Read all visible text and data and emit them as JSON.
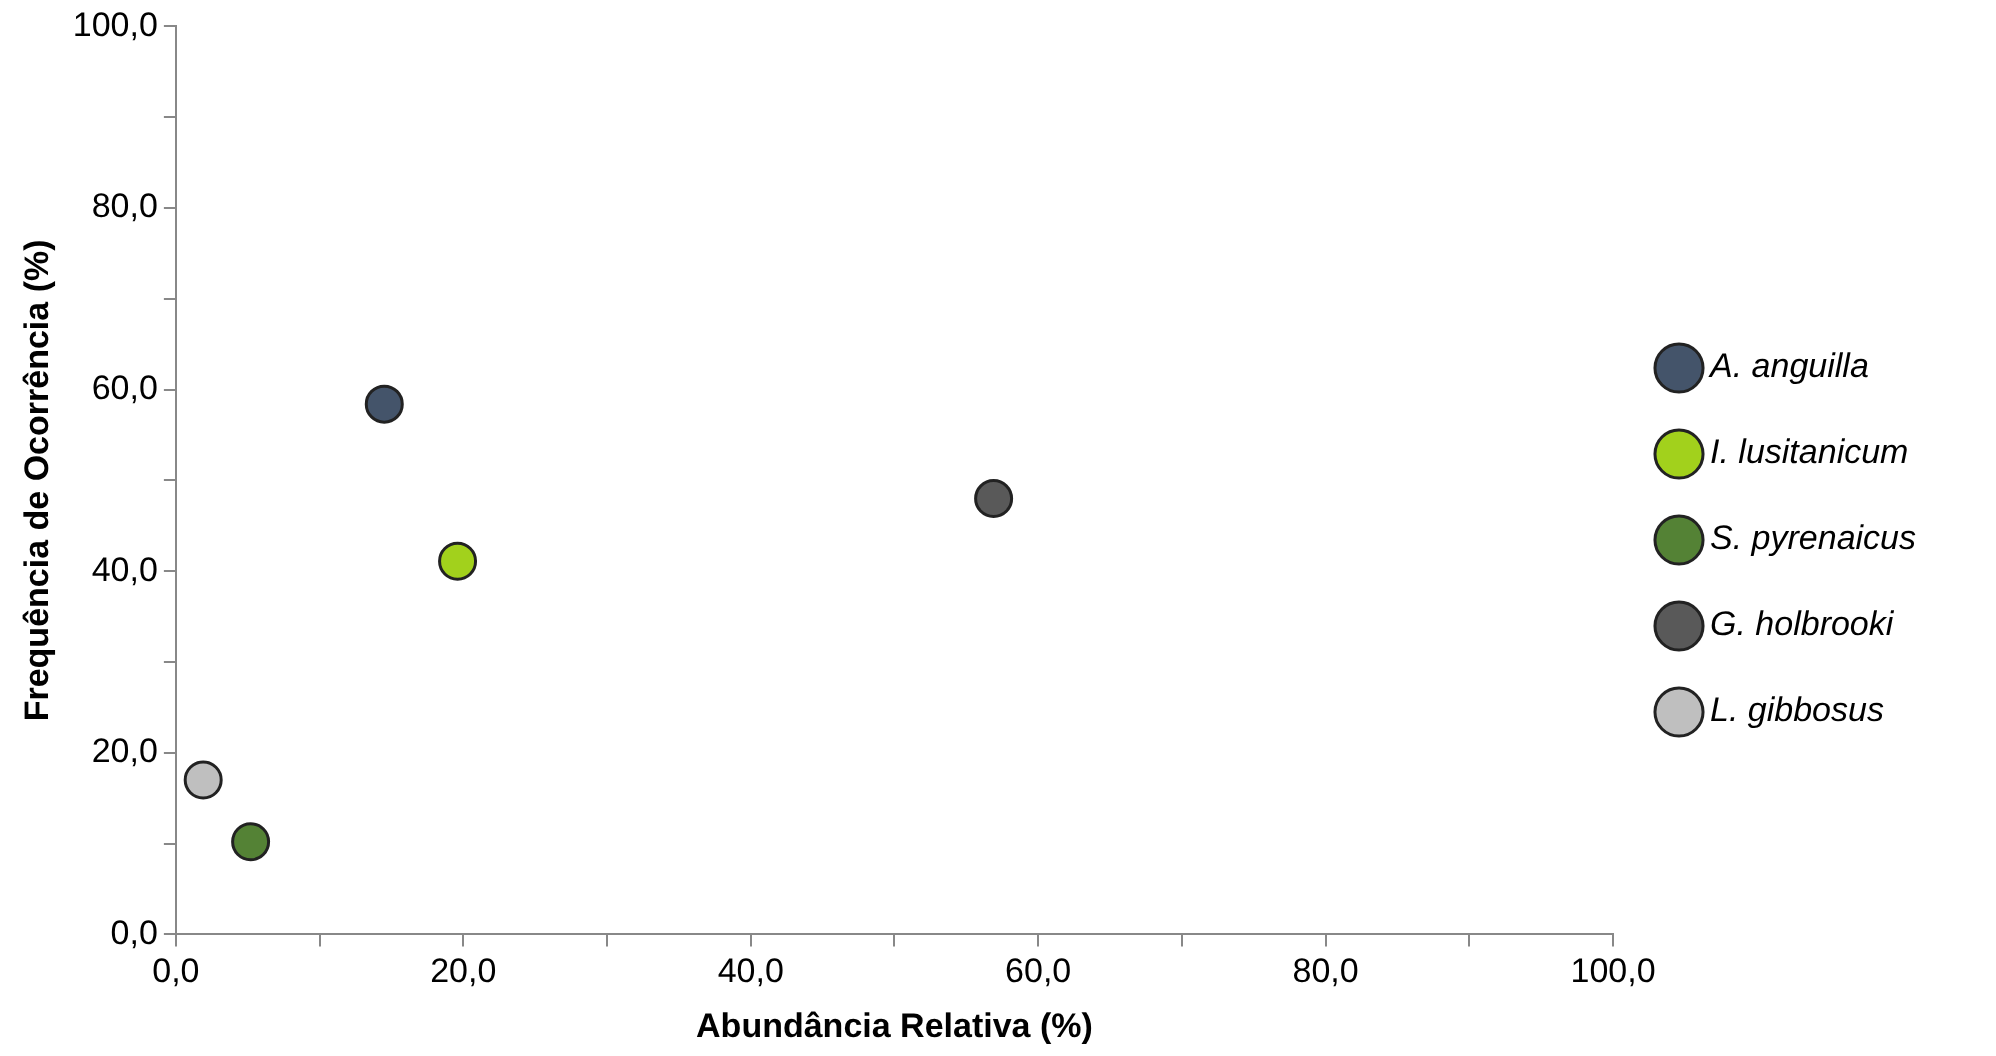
{
  "chart_data": {
    "type": "scatter",
    "xlabel": "Abundância Relativa (%)",
    "ylabel": "Frequência de Ocorrência (%)",
    "xlim": [
      0,
      100
    ],
    "ylim": [
      0,
      100
    ],
    "xticks": [
      {
        "value": 0,
        "label": "0,0"
      },
      {
        "value": 10,
        "label": null
      },
      {
        "value": 20,
        "label": "20,0"
      },
      {
        "value": 30,
        "label": null
      },
      {
        "value": 40,
        "label": "40,0"
      },
      {
        "value": 50,
        "label": null
      },
      {
        "value": 60,
        "label": "60,0"
      },
      {
        "value": 70,
        "label": null
      },
      {
        "value": 80,
        "label": "80,0"
      },
      {
        "value": 90,
        "label": null
      },
      {
        "value": 100,
        "label": "100,0"
      }
    ],
    "yticks": [
      {
        "value": 0,
        "label": "0,0"
      },
      {
        "value": 10,
        "label": null
      },
      {
        "value": 20,
        "label": "20,0"
      },
      {
        "value": 30,
        "label": null
      },
      {
        "value": 40,
        "label": "40,0"
      },
      {
        "value": 50,
        "label": null
      },
      {
        "value": 60,
        "label": "60,0"
      },
      {
        "value": 70,
        "label": null
      },
      {
        "value": 80,
        "label": "80,0"
      },
      {
        "value": 90,
        "label": null
      },
      {
        "value": 100,
        "label": "100,0"
      }
    ],
    "grid": false,
    "legend": "right",
    "marker": "circle",
    "series": [
      {
        "name": "A. anguilla",
        "color": "#44546a",
        "x": [
          14.5
        ],
        "values": [
          58.4
        ]
      },
      {
        "name": "I. lusitanicum",
        "color": "#a2d11c",
        "x": [
          19.6
        ],
        "values": [
          41.1
        ]
      },
      {
        "name": "S. pyrenaicus",
        "color": "#548235",
        "x": [
          5.2
        ],
        "values": [
          10.2
        ]
      },
      {
        "name": "G. holbrooki",
        "color": "#595959",
        "x": [
          56.9
        ],
        "values": [
          48.0
        ]
      },
      {
        "name": "L. gibbosus",
        "color": "#bfbfbf",
        "x": [
          1.9
        ],
        "values": [
          17.0
        ]
      }
    ]
  }
}
